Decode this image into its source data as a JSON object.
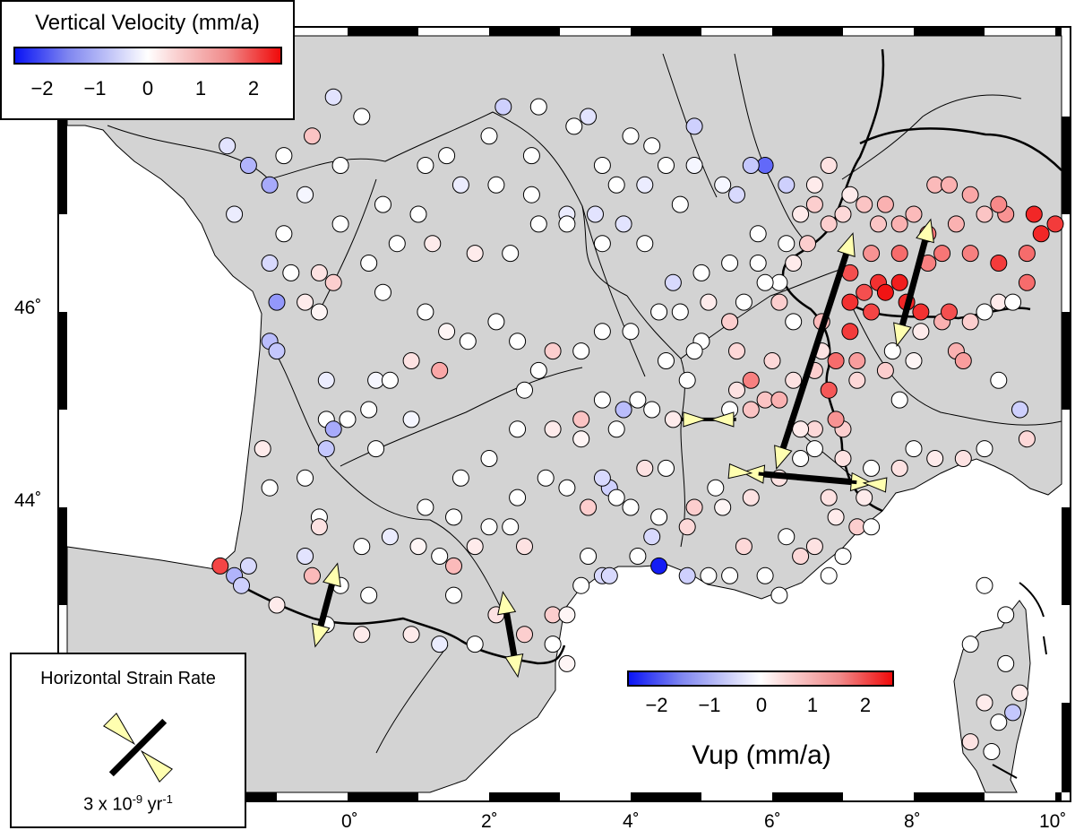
{
  "legend_top": {
    "title": "Vertical Velocity (mm/a)",
    "ticks": [
      "−2",
      "−1",
      "0",
      "1",
      "2"
    ]
  },
  "legend_bottom": {
    "title": "Vup (mm/a)",
    "ticks": [
      "−2",
      "−1",
      "0",
      "1",
      "2"
    ]
  },
  "strain_legend": {
    "title": "Horizontal Strain Rate",
    "scale_prefix": "3 x 10",
    "scale_exp": "-9",
    "scale_unit": " yr",
    "scale_unit_exp": "-1"
  },
  "axes": {
    "lon_labels": [
      "0˚",
      "2˚",
      "4˚",
      "6˚",
      "8˚",
      "10˚"
    ],
    "lat_labels": [
      "44˚",
      "46˚"
    ]
  },
  "colors": {
    "land": "#d3d3d3",
    "sea": "#ffffff",
    "negative": "#0a14f5",
    "positive": "#f00a0a",
    "arrow_fill": "#ffffb0",
    "strain_axis": "#000000"
  },
  "color_scale": {
    "min": -2.5,
    "max": 2.5
  },
  "stations": [
    [
      -1.7,
      47.7,
      -0.3
    ],
    [
      -1.4,
      47.5,
      -0.8
    ],
    [
      -1.1,
      47.3,
      -0.9
    ],
    [
      -1.6,
      47.0,
      -0.2
    ],
    [
      -0.9,
      47.6,
      0.0
    ],
    [
      -0.5,
      47.8,
      0.6
    ],
    [
      -0.2,
      48.2,
      -0.3
    ],
    [
      0.2,
      48.0,
      0.0
    ],
    [
      -0.6,
      47.2,
      -0.1
    ],
    [
      -0.9,
      46.8,
      0.0
    ],
    [
      -0.1,
      46.9,
      0.0
    ],
    [
      -1.1,
      46.5,
      -0.4
    ],
    [
      -0.8,
      46.4,
      0.0
    ],
    [
      -1.0,
      46.1,
      -1.1
    ],
    [
      -0.4,
      46.4,
      0.3
    ],
    [
      -0.6,
      46.1,
      0.2
    ],
    [
      -0.2,
      46.3,
      0.5
    ],
    [
      -0.4,
      46.0,
      0.1
    ],
    [
      -1.1,
      45.7,
      -0.7
    ],
    [
      -1.0,
      45.6,
      -0.6
    ],
    [
      -0.3,
      45.3,
      -0.2
    ],
    [
      0.4,
      45.3,
      -0.1
    ],
    [
      -0.3,
      44.9,
      0.0
    ],
    [
      -0.2,
      44.8,
      -0.9
    ],
    [
      0.0,
      44.9,
      0.0
    ],
    [
      0.3,
      45.0,
      0.0
    ],
    [
      0.6,
      45.3,
      0.0
    ],
    [
      0.9,
      45.5,
      0.3
    ],
    [
      1.3,
      45.4,
      0.9
    ],
    [
      0.9,
      44.9,
      -0.1
    ],
    [
      0.4,
      44.6,
      0.0
    ],
    [
      -0.3,
      44.6,
      -0.6
    ],
    [
      -1.2,
      44.6,
      0.2
    ],
    [
      -1.1,
      44.2,
      0.0
    ],
    [
      -0.6,
      44.3,
      0.0
    ],
    [
      -0.4,
      43.9,
      0.0
    ],
    [
      -0.4,
      43.8,
      0.3
    ],
    [
      -0.6,
      43.5,
      -0.3
    ],
    [
      0.2,
      43.6,
      0.0
    ],
    [
      0.6,
      43.7,
      -0.2
    ],
    [
      1.0,
      43.6,
      0.1
    ],
    [
      1.3,
      43.5,
      0.0
    ],
    [
      1.5,
      43.4,
      0.7
    ],
    [
      -1.8,
      43.4,
      1.9
    ],
    [
      -1.6,
      43.3,
      -0.8
    ],
    [
      -1.4,
      43.4,
      -0.4
    ],
    [
      -1.5,
      43.2,
      -0.5
    ],
    [
      -1.0,
      43.0,
      0.2
    ],
    [
      -0.5,
      43.3,
      0.7
    ],
    [
      -0.1,
      43.2,
      0.0
    ],
    [
      0.3,
      43.1,
      0.0
    ],
    [
      -0.3,
      42.8,
      0.0
    ],
    [
      0.2,
      42.7,
      0.2
    ],
    [
      0.9,
      42.7,
      0.2
    ],
    [
      1.5,
      43.1,
      0.0
    ],
    [
      1.3,
      42.6,
      -0.2
    ],
    [
      1.8,
      42.6,
      0.0
    ],
    [
      2.1,
      42.9,
      0.3
    ],
    [
      2.5,
      42.7,
      0.5
    ],
    [
      2.9,
      42.9,
      0.5
    ],
    [
      3.1,
      42.9,
      0.1
    ],
    [
      2.9,
      42.6,
      0.0
    ],
    [
      3.1,
      42.4,
      0.1
    ],
    [
      3.3,
      43.2,
      0.0
    ],
    [
      3.6,
      43.3,
      -0.4
    ],
    [
      3.4,
      43.5,
      0.0
    ],
    [
      3.7,
      43.3,
      -0.4
    ],
    [
      4.1,
      43.5,
      0.0
    ],
    [
      4.4,
      43.4,
      -2.4
    ],
    [
      4.8,
      43.3,
      -0.5
    ],
    [
      5.1,
      43.3,
      0.0
    ],
    [
      5.4,
      43.3,
      0.0
    ],
    [
      5.6,
      43.6,
      0.4
    ],
    [
      5.9,
      43.3,
      0.0
    ],
    [
      6.2,
      43.7,
      0.0
    ],
    [
      6.6,
      43.6,
      0.3
    ],
    [
      7.0,
      43.5,
      0.0
    ],
    [
      6.8,
      43.3,
      0.0
    ],
    [
      6.1,
      43.1,
      0.0
    ],
    [
      6.4,
      43.5,
      0.4
    ],
    [
      6.9,
      43.9,
      0.2
    ],
    [
      7.3,
      44.1,
      0.2
    ],
    [
      7.2,
      43.8,
      0.5
    ],
    [
      7.4,
      43.8,
      0.0
    ],
    [
      6.8,
      44.1,
      0.3
    ],
    [
      6.1,
      44.3,
      0.3
    ],
    [
      5.7,
      44.1,
      0.3
    ],
    [
      5.3,
      44.0,
      0.1
    ],
    [
      5.2,
      44.2,
      0.0
    ],
    [
      4.9,
      44.0,
      0.5
    ],
    [
      4.8,
      43.8,
      0.4
    ],
    [
      4.4,
      43.9,
      0.0
    ],
    [
      4.3,
      43.7,
      -0.4
    ],
    [
      4.0,
      44.0,
      0.0
    ],
    [
      3.7,
      44.2,
      -0.5
    ],
    [
      3.8,
      44.1,
      0.0
    ],
    [
      3.6,
      44.3,
      -0.4
    ],
    [
      3.4,
      44.0,
      0.5
    ],
    [
      3.1,
      44.2,
      0.0
    ],
    [
      2.8,
      44.3,
      0.0
    ],
    [
      2.4,
      44.1,
      0.0
    ],
    [
      2.3,
      43.8,
      0.0
    ],
    [
      2.5,
      43.6,
      0.3
    ],
    [
      2.0,
      43.8,
      0.0
    ],
    [
      1.8,
      43.6,
      0.2
    ],
    [
      1.5,
      43.9,
      0.0
    ],
    [
      1.1,
      44.0,
      0.0
    ],
    [
      1.6,
      44.3,
      0.0
    ],
    [
      2.0,
      44.5,
      0.0
    ],
    [
      2.4,
      44.8,
      0.0
    ],
    [
      2.9,
      44.8,
      0.2
    ],
    [
      3.3,
      44.7,
      0.1
    ],
    [
      3.3,
      44.9,
      0.6
    ],
    [
      3.6,
      45.1,
      0.0
    ],
    [
      3.9,
      45.0,
      -0.7
    ],
    [
      4.3,
      45.0,
      0.0
    ],
    [
      4.6,
      44.9,
      0.2
    ],
    [
      4.5,
      44.4,
      0.0
    ],
    [
      4.2,
      44.4,
      0.3
    ],
    [
      3.8,
      44.8,
      0.0
    ],
    [
      4.1,
      45.1,
      0.0
    ],
    [
      4.5,
      45.5,
      0.0
    ],
    [
      4.8,
      45.3,
      0.0
    ],
    [
      5.0,
      45.7,
      0.0
    ],
    [
      5.4,
      45.9,
      0.0
    ],
    [
      5.5,
      45.6,
      0.4
    ],
    [
      5.7,
      45.3,
      1.3
    ],
    [
      5.5,
      45.2,
      0.3
    ],
    [
      5.4,
      45.0,
      0.0
    ],
    [
      5.7,
      45.0,
      0.6
    ],
    [
      5.9,
      45.1,
      0.6
    ],
    [
      6.1,
      45.1,
      0.8
    ],
    [
      6.3,
      45.3,
      0.3
    ],
    [
      6.6,
      45.4,
      0.5
    ],
    [
      6.8,
      45.2,
      1.7
    ],
    [
      6.9,
      45.5,
      1.5
    ],
    [
      7.2,
      45.5,
      1.0
    ],
    [
      7.6,
      45.4,
      0.5
    ],
    [
      7.7,
      45.6,
      0.0
    ],
    [
      7.2,
      45.3,
      0.4
    ],
    [
      7.8,
      45.1,
      0.0
    ],
    [
      8.0,
      45.5,
      0.1
    ],
    [
      8.1,
      45.8,
      0.2
    ],
    [
      8.4,
      45.9,
      0.8
    ],
    [
      8.6,
      45.6,
      0.8
    ],
    [
      8.8,
      45.9,
      0.5
    ],
    [
      9.0,
      46.0,
      0.0
    ],
    [
      9.2,
      46.1,
      0.2
    ],
    [
      9.4,
      46.1,
      0.0
    ],
    [
      8.7,
      45.5,
      1.0
    ],
    [
      9.2,
      45.3,
      0.0
    ],
    [
      9.5,
      45.0,
      -0.5
    ],
    [
      9.6,
      44.7,
      0.4
    ],
    [
      9.0,
      44.6,
      0.0
    ],
    [
      8.7,
      44.5,
      0.3
    ],
    [
      8.3,
      44.5,
      0.2
    ],
    [
      8.0,
      44.6,
      0.0
    ],
    [
      7.8,
      44.4,
      0.3
    ],
    [
      7.4,
      44.4,
      0.0
    ],
    [
      7.0,
      44.8,
      0.5
    ],
    [
      6.6,
      44.6,
      0.0
    ],
    [
      6.4,
      44.5,
      0.0
    ],
    [
      6.6,
      44.8,
      0.4
    ],
    [
      6.4,
      44.8,
      0.2
    ],
    [
      7.3,
      47.1,
      0.6
    ],
    [
      7.5,
      46.9,
      0.6
    ],
    [
      7.8,
      46.9,
      0.8
    ],
    [
      8.0,
      47.0,
      0.7
    ],
    [
      8.2,
      46.8,
      1.4
    ],
    [
      8.6,
      46.9,
      0.8
    ],
    [
      9.0,
      47.0,
      0.6
    ],
    [
      9.3,
      47.0,
      1.1
    ],
    [
      9.7,
      47.0,
      2.2
    ],
    [
      9.8,
      46.8,
      2.2
    ],
    [
      10.0,
      46.9,
      2.0
    ],
    [
      9.6,
      46.6,
      1.5
    ],
    [
      9.2,
      46.5,
      2.0
    ],
    [
      9.6,
      46.3,
      1.5
    ],
    [
      7.1,
      46.4,
      1.8
    ],
    [
      7.3,
      46.2,
      1.8
    ],
    [
      7.5,
      46.3,
      2.1
    ],
    [
      7.6,
      46.2,
      2.4
    ],
    [
      7.8,
      46.3,
      2.3
    ],
    [
      7.9,
      46.1,
      2.2
    ],
    [
      8.1,
      46.0,
      2.1
    ],
    [
      8.5,
      46.0,
      1.8
    ],
    [
      7.1,
      46.1,
      2.1
    ],
    [
      7.4,
      46.0,
      1.9
    ],
    [
      7.1,
      45.8,
      2.0
    ],
    [
      6.7,
      45.9,
      0.7
    ],
    [
      6.7,
      45.6,
      0.3
    ],
    [
      6.3,
      45.9,
      0.0
    ],
    [
      6.1,
      46.1,
      0.5
    ],
    [
      6.1,
      46.3,
      0.0
    ],
    [
      6.3,
      46.5,
      0.2
    ],
    [
      6.5,
      46.7,
      0.5
    ],
    [
      6.8,
      46.9,
      0.5
    ],
    [
      7.0,
      47.0,
      0.4
    ],
    [
      7.1,
      47.2,
      0.2
    ],
    [
      6.6,
      47.3,
      0.2
    ],
    [
      6.8,
      47.5,
      0.3
    ],
    [
      6.2,
      47.3,
      -0.5
    ],
    [
      5.9,
      47.5,
      -1.6
    ],
    [
      5.7,
      47.5,
      -0.6
    ],
    [
      5.5,
      47.2,
      -0.4
    ],
    [
      5.3,
      47.3,
      -0.1
    ],
    [
      4.9,
      47.5,
      -0.1
    ],
    [
      4.7,
      47.1,
      0.0
    ],
    [
      4.5,
      47.5,
      0.0
    ],
    [
      4.9,
      47.9,
      -0.5
    ],
    [
      4.3,
      47.7,
      0.0
    ],
    [
      4.0,
      47.8,
      0.0
    ],
    [
      3.8,
      47.3,
      0.0
    ],
    [
      3.5,
      47.0,
      -0.3
    ],
    [
      3.1,
      47.0,
      -0.2
    ],
    [
      2.6,
      47.2,
      0.0
    ],
    [
      2.1,
      47.3,
      0.0
    ],
    [
      1.6,
      47.3,
      -0.2
    ],
    [
      1.1,
      47.5,
      0.0
    ],
    [
      1.0,
      47.0,
      0.0
    ],
    [
      1.2,
      46.7,
      0.2
    ],
    [
      1.8,
      46.6,
      0.2
    ],
    [
      2.3,
      46.6,
      0.0
    ],
    [
      2.7,
      46.9,
      0.0
    ],
    [
      3.1,
      46.9,
      0.0
    ],
    [
      3.6,
      46.7,
      0.0
    ],
    [
      3.9,
      46.9,
      -0.3
    ],
    [
      4.2,
      46.7,
      0.0
    ],
    [
      4.6,
      46.3,
      -0.4
    ],
    [
      5.0,
      46.4,
      0.0
    ],
    [
      5.4,
      46.5,
      0.0
    ],
    [
      5.8,
      46.5,
      0.0
    ],
    [
      5.9,
      46.3,
      0.0
    ],
    [
      5.6,
      46.1,
      0.0
    ],
    [
      5.4,
      45.9,
      0.5
    ],
    [
      5.1,
      46.1,
      0.2
    ],
    [
      4.7,
      46.0,
      0.0
    ],
    [
      4.4,
      46.0,
      0.0
    ],
    [
      4.0,
      45.8,
      0.0
    ],
    [
      3.6,
      45.8,
      0.0
    ],
    [
      3.3,
      45.6,
      0.0
    ],
    [
      2.9,
      45.6,
      0.5
    ],
    [
      2.7,
      45.4,
      0.0
    ],
    [
      2.5,
      45.2,
      0.0
    ],
    [
      2.4,
      45.7,
      0.0
    ],
    [
      2.1,
      45.9,
      0.0
    ],
    [
      1.7,
      45.7,
      0.0
    ],
    [
      1.4,
      45.8,
      0.1
    ],
    [
      1.1,
      46.0,
      0.0
    ],
    [
      0.5,
      46.2,
      0.0
    ],
    [
      0.3,
      46.5,
      0.0
    ],
    [
      0.7,
      46.7,
      0.0
    ],
    [
      -0.1,
      47.5,
      0.0
    ],
    [
      0.5,
      47.1,
      0.0
    ],
    [
      1.4,
      47.6,
      0.0
    ],
    [
      2.0,
      47.8,
      0.0
    ],
    [
      2.6,
      47.6,
      0.0
    ],
    [
      3.2,
      47.9,
      0.0
    ],
    [
      2.2,
      48.1,
      -0.5
    ],
    [
      2.7,
      48.1,
      0.0
    ],
    [
      3.4,
      48.0,
      -0.3
    ],
    [
      3.6,
      47.5,
      0.0
    ],
    [
      4.2,
      47.3,
      -0.2
    ],
    [
      5.8,
      46.8,
      0.0
    ],
    [
      6.4,
      47.0,
      0.2
    ],
    [
      6.6,
      47.1,
      0.5
    ],
    [
      6.2,
      46.7,
      0.0
    ],
    [
      8.3,
      47.3,
      0.7
    ],
    [
      8.5,
      47.3,
      0.8
    ],
    [
      8.8,
      47.2,
      0.9
    ],
    [
      9.2,
      47.1,
      1.2
    ],
    [
      7.6,
      47.1,
      0.8
    ],
    [
      7.4,
      46.6,
      1.1
    ],
    [
      7.8,
      46.6,
      1.5
    ],
    [
      8.4,
      46.6,
      1.4
    ],
    [
      8.8,
      46.6,
      1.3
    ],
    [
      8.2,
      46.5,
      1.3
    ],
    [
      6.9,
      44.9,
      1.1
    ],
    [
      7.0,
      44.5,
      0.3
    ],
    [
      6.0,
      45.5,
      0.4
    ],
    [
      4.9,
      45.6,
      0.0
    ],
    [
      9.0,
      43.2,
      0.0
    ],
    [
      9.3,
      42.9,
      0.0
    ],
    [
      9.3,
      42.4,
      0.0
    ],
    [
      9.0,
      42.0,
      0.2
    ],
    [
      9.2,
      41.8,
      0.0
    ],
    [
      8.8,
      41.6,
      0.3
    ],
    [
      9.1,
      41.5,
      0.0
    ],
    [
      9.5,
      42.1,
      0.2
    ],
    [
      9.4,
      41.9,
      -0.6
    ],
    [
      8.8,
      42.6,
      0.0
    ]
  ],
  "strain_tensors": [
    {
      "lon": 6.6,
      "lat": 45.6,
      "comp": 0,
      "ext": 1.2,
      "angle": -72
    },
    {
      "lon": 8.0,
      "lat": 46.3,
      "comp": 0,
      "ext": 0.55,
      "angle": -75
    },
    {
      "lon": 6.5,
      "lat": 44.3,
      "comp": 0.55,
      "ext": 0.55,
      "angle": 5
    },
    {
      "lon": 5.1,
      "lat": 44.9,
      "comp": 0.22,
      "ext": 0,
      "angle": 0
    },
    {
      "lon": -0.3,
      "lat": 43.0,
      "comp": 0,
      "ext": 0.3,
      "angle": -75
    },
    {
      "lon": 2.3,
      "lat": 42.7,
      "comp": 0,
      "ext": 0.3,
      "angle": -100
    }
  ]
}
